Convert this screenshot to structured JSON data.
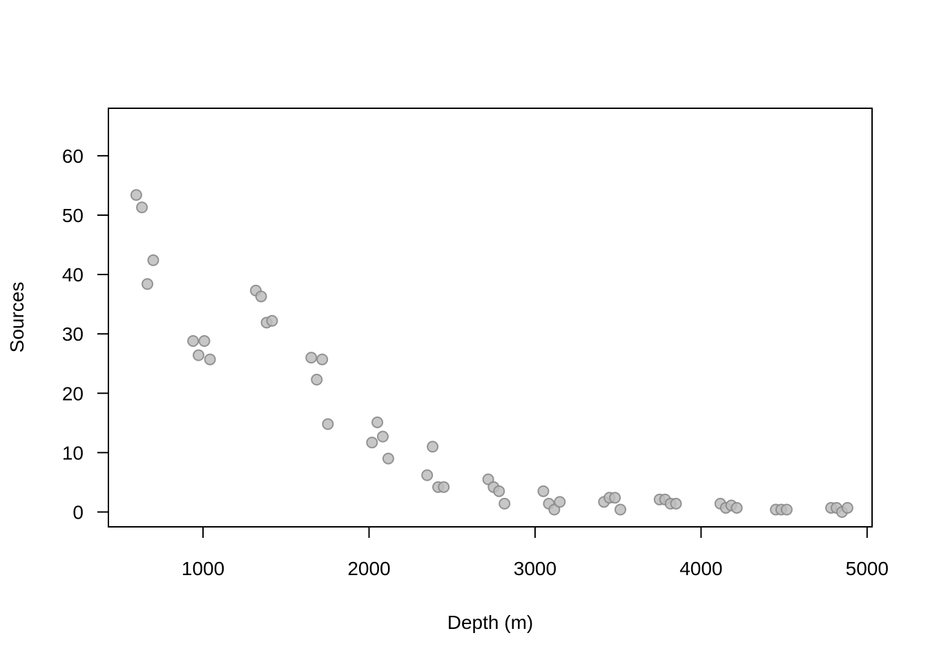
{
  "chart_data": {
    "type": "scatter",
    "title": "",
    "xlabel": "Depth (m)",
    "ylabel": "Sources",
    "xlim": [
      430,
      5030
    ],
    "ylim": [
      -2.5,
      68
    ],
    "x_ticks": [
      1000,
      2000,
      3000,
      4000,
      5000
    ],
    "y_ticks": [
      0,
      10,
      20,
      30,
      40,
      50,
      60
    ],
    "grid": false,
    "legend": "none",
    "colors": {
      "point_fill": "#bdbdbd",
      "point_stroke": "#8a8a8a",
      "axis": "#000000"
    },
    "points": [
      [
        598,
        53.4
      ],
      [
        632,
        51.3
      ],
      [
        665,
        38.4
      ],
      [
        700,
        42.4
      ],
      [
        940,
        28.8
      ],
      [
        973,
        26.4
      ],
      [
        1008,
        28.8
      ],
      [
        1042,
        25.7
      ],
      [
        1318,
        37.3
      ],
      [
        1350,
        36.3
      ],
      [
        1383,
        31.9
      ],
      [
        1416,
        32.2
      ],
      [
        1652,
        26.0
      ],
      [
        1685,
        22.3
      ],
      [
        1718,
        25.7
      ],
      [
        1752,
        14.8
      ],
      [
        2018,
        11.7
      ],
      [
        2050,
        15.1
      ],
      [
        2083,
        12.7
      ],
      [
        2116,
        9.0
      ],
      [
        2350,
        6.2
      ],
      [
        2383,
        11.0
      ],
      [
        2416,
        4.2
      ],
      [
        2450,
        4.2
      ],
      [
        2718,
        5.5
      ],
      [
        2750,
        4.2
      ],
      [
        2783,
        3.5
      ],
      [
        2816,
        1.4
      ],
      [
        3050,
        3.5
      ],
      [
        3083,
        1.4
      ],
      [
        3116,
        0.4
      ],
      [
        3149,
        1.7
      ],
      [
        3415,
        1.7
      ],
      [
        3448,
        2.4
      ],
      [
        3481,
        2.4
      ],
      [
        3514,
        0.4
      ],
      [
        3750,
        2.1
      ],
      [
        3783,
        2.1
      ],
      [
        3816,
        1.4
      ],
      [
        3849,
        1.4
      ],
      [
        4116,
        1.4
      ],
      [
        4149,
        0.7
      ],
      [
        4182,
        1.1
      ],
      [
        4215,
        0.7
      ],
      [
        4450,
        0.4
      ],
      [
        4483,
        0.4
      ],
      [
        4516,
        0.4
      ],
      [
        4783,
        0.7
      ],
      [
        4816,
        0.7
      ],
      [
        4849,
        0.0
      ],
      [
        4882,
        0.7
      ]
    ]
  }
}
